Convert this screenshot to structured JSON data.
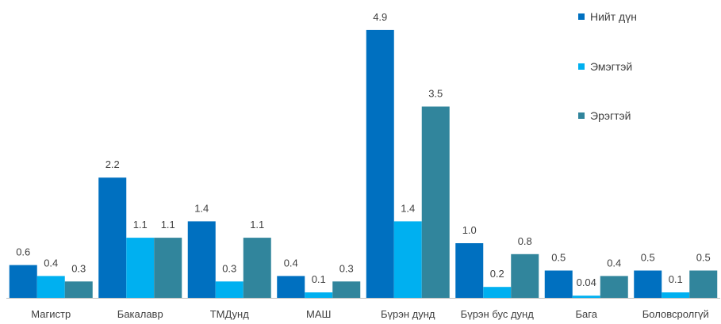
{
  "chart_data": {
    "type": "bar",
    "categories": [
      "Магистр",
      "Бакалавр",
      "ТМДунд",
      "МАШ",
      "Бүрэн дунд",
      "Бүрэн бус дунд",
      "Бага",
      "Боловсролгүй"
    ],
    "series": [
      {
        "name": "Нийт дүн",
        "color": "#0070C0",
        "values": [
          0.6,
          2.2,
          1.4,
          0.4,
          4.9,
          1.0,
          0.5,
          0.5
        ]
      },
      {
        "name": "Эмэгтэй",
        "color": "#00B0F0",
        "values": [
          0.4,
          1.1,
          0.3,
          0.1,
          1.4,
          0.2,
          0.04,
          0.1
        ]
      },
      {
        "name": "Эрэгтэй",
        "color": "#31859C",
        "values": [
          0.3,
          1.1,
          1.1,
          0.3,
          3.5,
          0.8,
          0.4,
          0.5
        ]
      }
    ],
    "ylim": [
      0,
      5
    ],
    "grid": false,
    "legend": "top-right",
    "value_labels": true
  }
}
